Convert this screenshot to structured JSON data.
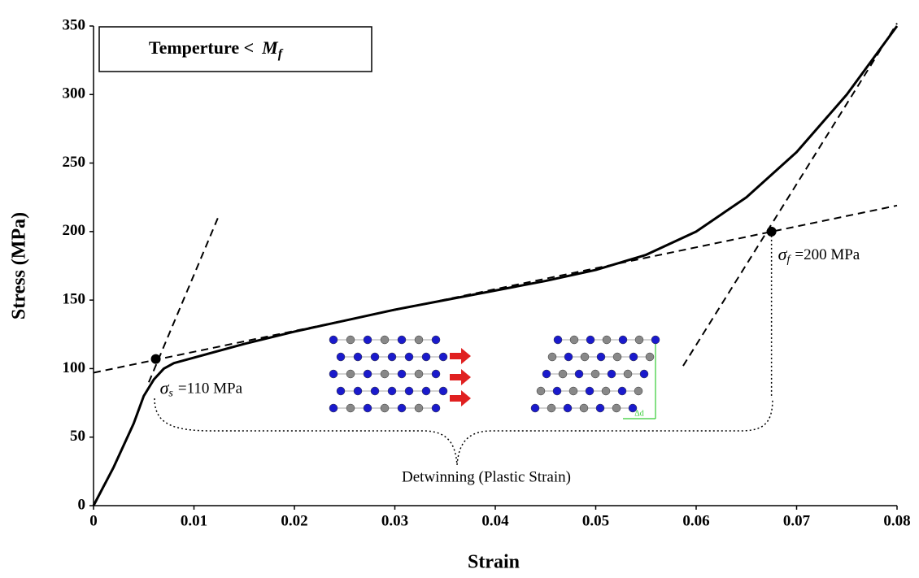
{
  "chart_data": {
    "type": "line",
    "x_label": "Strain",
    "y_label": "Stress (MPa)",
    "x": [
      0,
      0.002,
      0.004,
      0.005,
      0.006,
      0.007,
      0.008,
      0.01,
      0.015,
      0.02,
      0.025,
      0.03,
      0.035,
      0.04,
      0.045,
      0.05,
      0.055,
      0.06,
      0.065,
      0.07,
      0.075,
      0.08
    ],
    "values": [
      0,
      28,
      60,
      80,
      92,
      100,
      104,
      108,
      118,
      127,
      135,
      143,
      150,
      157,
      164,
      172,
      183,
      200,
      225,
      258,
      300,
      350
    ],
    "color": "#000000",
    "xlim": [
      0,
      0.08
    ],
    "ylim": [
      0,
      350
    ],
    "xticks": [
      0,
      0.01,
      0.02,
      0.03,
      0.04,
      0.05,
      0.06,
      0.07,
      0.08
    ],
    "yticks": [
      0,
      50,
      100,
      150,
      200,
      250,
      300,
      350
    ],
    "box": {
      "text": "Temperture <",
      "symbol": "M",
      "sub": "f"
    },
    "reference_lines": [
      {
        "x": [
          0,
          0.08
        ],
        "y": [
          97,
          219
        ]
      },
      {
        "x": [
          0.0055,
          0.0125
        ],
        "y": [
          90,
          212
        ]
      },
      {
        "x": [
          0.0587,
          0.08
        ],
        "y": [
          102,
          352
        ]
      }
    ],
    "points": [
      {
        "x": 0.0062,
        "y": 107,
        "symbol": "σ",
        "sub": "s",
        "text": "=110 MPa"
      },
      {
        "x": 0.0675,
        "y": 200,
        "symbol": "σ",
        "sub": "f",
        "text": "=200 MPa"
      }
    ],
    "brace_label": "Detwinning (Plastic Strain)",
    "illustration_label": "Δd"
  }
}
